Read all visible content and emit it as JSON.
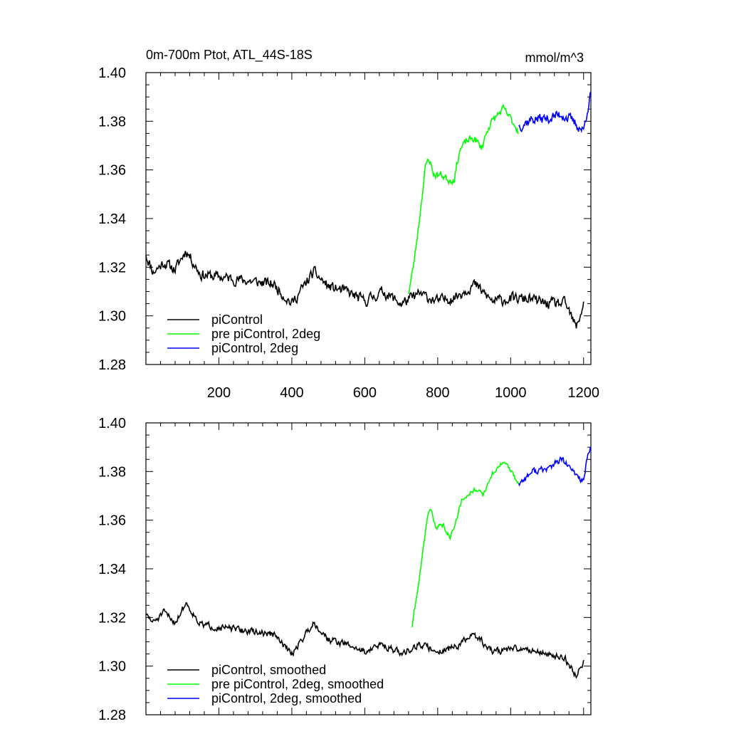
{
  "title_left": "0m-700m Ptot, ATL_44S-18S",
  "title_right": "mmol/m^3",
  "colors": {
    "piControl": "#000000",
    "pre_2deg": "#00ff00",
    "pi_2deg": "#0000ff",
    "axis": "#000000"
  },
  "chart_data": [
    {
      "type": "line",
      "title": "0m-700m Ptot, ATL_44S-18S",
      "units": "mmol/m^3",
      "xlim": [
        0,
        1220
      ],
      "ylim": [
        1.28,
        1.4
      ],
      "yticks": [
        "1.28",
        "1.30",
        "1.32",
        "1.34",
        "1.36",
        "1.38",
        "1.40"
      ],
      "xticks": [
        "200",
        "400",
        "600",
        "800",
        "1000",
        "1200"
      ],
      "legend_position": "bottom-left",
      "series": [
        {
          "name": "piControl",
          "color": "#000000",
          "x_start": 0,
          "x_end": 1200,
          "anchors": [
            [
              0,
              1.325
            ],
            [
              20,
              1.318
            ],
            [
              50,
              1.322
            ],
            [
              80,
              1.319
            ],
            [
              110,
              1.327
            ],
            [
              150,
              1.317
            ],
            [
              200,
              1.316
            ],
            [
              250,
              1.315
            ],
            [
              300,
              1.314
            ],
            [
              350,
              1.313
            ],
            [
              400,
              1.305
            ],
            [
              460,
              1.318
            ],
            [
              500,
              1.312
            ],
            [
              550,
              1.31
            ],
            [
              600,
              1.306
            ],
            [
              650,
              1.31
            ],
            [
              700,
              1.305
            ],
            [
              750,
              1.309
            ],
            [
              800,
              1.306
            ],
            [
              850,
              1.308
            ],
            [
              900,
              1.313
            ],
            [
              950,
              1.306
            ],
            [
              1000,
              1.307
            ],
            [
              1050,
              1.307
            ],
            [
              1100,
              1.305
            ],
            [
              1150,
              1.305
            ],
            [
              1180,
              1.295
            ],
            [
              1200,
              1.305
            ]
          ],
          "noise": 0.0035,
          "seed": 11
        },
        {
          "name": "pre piControl, 2deg",
          "color": "#00ff00",
          "x_start": 720,
          "x_end": 1022,
          "anchors": [
            [
              720,
              1.309
            ],
            [
              735,
              1.322
            ],
            [
              750,
              1.34
            ],
            [
              765,
              1.36
            ],
            [
              775,
              1.365
            ],
            [
              790,
              1.358
            ],
            [
              810,
              1.358
            ],
            [
              830,
              1.356
            ],
            [
              845,
              1.356
            ],
            [
              860,
              1.368
            ],
            [
              880,
              1.372
            ],
            [
              900,
              1.373
            ],
            [
              920,
              1.369
            ],
            [
              940,
              1.378
            ],
            [
              960,
              1.382
            ],
            [
              980,
              1.385
            ],
            [
              1000,
              1.381
            ],
            [
              1022,
              1.376
            ]
          ],
          "noise": 0.0025,
          "seed": 23
        },
        {
          "name": "piControl, 2deg",
          "color": "#0000ff",
          "x_start": 1022,
          "x_end": 1220,
          "anchors": [
            [
              1022,
              1.378
            ],
            [
              1060,
              1.381
            ],
            [
              1100,
              1.381
            ],
            [
              1140,
              1.383
            ],
            [
              1170,
              1.38
            ],
            [
              1200,
              1.376
            ],
            [
              1210,
              1.385
            ],
            [
              1220,
              1.391
            ]
          ],
          "noise": 0.0035,
          "seed": 37
        }
      ]
    },
    {
      "type": "line",
      "xlim": [
        0,
        1220
      ],
      "ylim": [
        1.28,
        1.4
      ],
      "yticks": [
        "1.28",
        "1.30",
        "1.32",
        "1.34",
        "1.36",
        "1.38",
        "1.40"
      ],
      "legend_position": "bottom-left",
      "series": [
        {
          "name": "piControl, smoothed",
          "color": "#000000",
          "x_start": 0,
          "x_end": 1200,
          "anchors": [
            [
              0,
              1.321
            ],
            [
              20,
              1.318
            ],
            [
              50,
              1.322
            ],
            [
              80,
              1.318
            ],
            [
              110,
              1.326
            ],
            [
              150,
              1.317
            ],
            [
              200,
              1.316
            ],
            [
              250,
              1.315
            ],
            [
              300,
              1.314
            ],
            [
              350,
              1.313
            ],
            [
              400,
              1.305
            ],
            [
              460,
              1.318
            ],
            [
              500,
              1.311
            ],
            [
              550,
              1.309
            ],
            [
              600,
              1.306
            ],
            [
              650,
              1.309
            ],
            [
              700,
              1.305
            ],
            [
              750,
              1.309
            ],
            [
              800,
              1.306
            ],
            [
              850,
              1.308
            ],
            [
              900,
              1.313
            ],
            [
              950,
              1.306
            ],
            [
              1000,
              1.307
            ],
            [
              1050,
              1.307
            ],
            [
              1100,
              1.305
            ],
            [
              1150,
              1.303
            ],
            [
              1180,
              1.296
            ],
            [
              1200,
              1.302
            ]
          ],
          "noise": 0.0022,
          "seed": 51
        },
        {
          "name": "pre piControl, 2deg, smoothed",
          "color": "#00ff00",
          "x_start": 730,
          "x_end": 1022,
          "anchors": [
            [
              730,
              1.316
            ],
            [
              740,
              1.326
            ],
            [
              755,
              1.342
            ],
            [
              770,
              1.36
            ],
            [
              780,
              1.365
            ],
            [
              795,
              1.357
            ],
            [
              815,
              1.358
            ],
            [
              835,
              1.353
            ],
            [
              850,
              1.36
            ],
            [
              865,
              1.368
            ],
            [
              885,
              1.371
            ],
            [
              905,
              1.373
            ],
            [
              925,
              1.37
            ],
            [
              945,
              1.378
            ],
            [
              965,
              1.382
            ],
            [
              985,
              1.384
            ],
            [
              1005,
              1.379
            ],
            [
              1022,
              1.375
            ]
          ],
          "noise": 0.0015,
          "seed": 63
        },
        {
          "name": "piControl, 2deg, smoothed",
          "color": "#0000ff",
          "x_start": 1022,
          "x_end": 1220,
          "anchors": [
            [
              1022,
              1.375
            ],
            [
              1060,
              1.38
            ],
            [
              1100,
              1.381
            ],
            [
              1140,
              1.385
            ],
            [
              1170,
              1.38
            ],
            [
              1200,
              1.376
            ],
            [
              1210,
              1.385
            ],
            [
              1220,
              1.39
            ]
          ],
          "noise": 0.0022,
          "seed": 77
        }
      ]
    }
  ]
}
